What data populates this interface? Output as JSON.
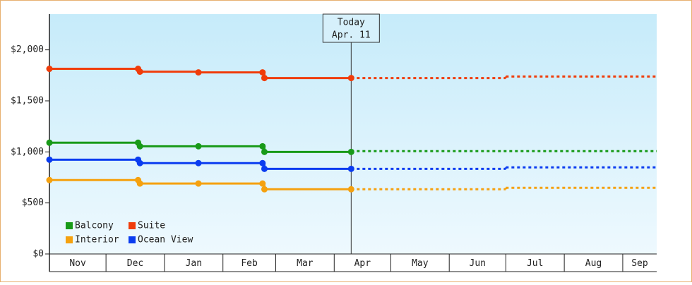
{
  "chart_data": {
    "type": "step-line",
    "ylim": [
      0,
      2350
    ],
    "yticks": [
      {
        "value": 0,
        "label": "$0"
      },
      {
        "value": 500,
        "label": "$500"
      },
      {
        "value": 1000,
        "label": "$1,000"
      },
      {
        "value": 1500,
        "label": "$1,500"
      },
      {
        "value": 2000,
        "label": "$2,000"
      }
    ],
    "xlim": [
      0,
      322
    ],
    "xticks": [
      {
        "value": 0,
        "label": "Nov"
      },
      {
        "value": 30,
        "label": "Dec"
      },
      {
        "value": 61,
        "label": "Jan"
      },
      {
        "value": 92,
        "label": "Feb"
      },
      {
        "value": 120,
        "label": "Mar"
      },
      {
        "value": 151,
        "label": "Apr"
      },
      {
        "value": 181,
        "label": "May"
      },
      {
        "value": 212,
        "label": "Jun"
      },
      {
        "value": 242,
        "label": "Jul"
      },
      {
        "value": 273,
        "label": "Aug"
      },
      {
        "value": 304,
        "label": "Sep"
      }
    ],
    "annotation": {
      "x": 160,
      "lines": [
        "Today",
        "Apr. 11"
      ]
    },
    "legend": "lower-left",
    "series": [
      {
        "name": "Balcony",
        "color": "#189a18",
        "x": [
          0,
          47,
          48,
          79,
          113,
          114,
          160
        ],
        "values": [
          1090,
          1090,
          1055,
          1055,
          1055,
          1000,
          1000
        ],
        "projection": {
          "x": [
            160
          ],
          "values": [
            1007
          ]
        }
      },
      {
        "name": "Suite",
        "color": "#f03c0a",
        "x": [
          0,
          47,
          48,
          79,
          113,
          114,
          160
        ],
        "values": [
          1814,
          1814,
          1786,
          1779,
          1779,
          1724,
          1724
        ],
        "projection": {
          "x": [
            160,
            242
          ],
          "values": [
            1724,
            1738
          ]
        }
      },
      {
        "name": "Interior",
        "color": "#f5a10f",
        "x": [
          0,
          47,
          48,
          79,
          113,
          114,
          160
        ],
        "values": [
          724,
          724,
          690,
          690,
          690,
          634,
          634
        ],
        "projection": {
          "x": [
            160,
            242
          ],
          "values": [
            634,
            648
          ]
        }
      },
      {
        "name": "Ocean View",
        "color": "#0a3cf0",
        "x": [
          0,
          47,
          48,
          79,
          113,
          114,
          160
        ],
        "values": [
          924,
          924,
          890,
          890,
          890,
          834,
          834
        ],
        "projection": {
          "x": [
            160,
            242
          ],
          "values": [
            834,
            848
          ]
        }
      }
    ]
  }
}
